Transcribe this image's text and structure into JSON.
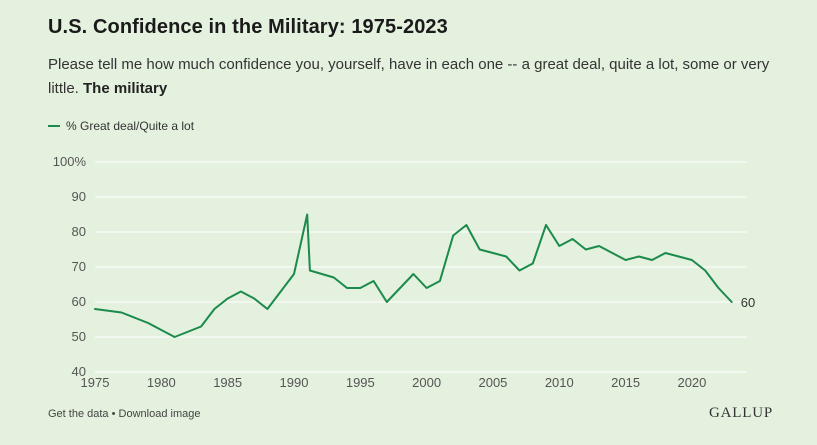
{
  "header": {
    "title": "U.S. Confidence in the Military: 1975-2023",
    "subtitle_question": "Please tell me how much confidence you, yourself, have in each one -- a great deal, quite a lot, some or very little.",
    "subtitle_item": "The military"
  },
  "legend": {
    "label": "% Great deal/Quite a lot"
  },
  "footer": {
    "get_data": "Get the data",
    "separator": "•",
    "download": "Download image",
    "brand": "GALLUP"
  },
  "colors": {
    "background": "#e4f1df",
    "series": "#1b8a4a",
    "grid": "#ffffff"
  },
  "chart_data": {
    "type": "line",
    "title": "U.S. Confidence in the Military: 1975-2023",
    "xlabel": "",
    "ylabel": "",
    "xlim": [
      1975,
      2024
    ],
    "ylim": [
      40,
      100
    ],
    "grid": true,
    "legend_position": "top-left",
    "x_ticks": [
      1975,
      1980,
      1985,
      1990,
      1995,
      2000,
      2005,
      2010,
      2015,
      2020
    ],
    "y_ticks": [
      {
        "value": 40,
        "label": "40"
      },
      {
        "value": 50,
        "label": "50"
      },
      {
        "value": 60,
        "label": "60"
      },
      {
        "value": 70,
        "label": "70"
      },
      {
        "value": 80,
        "label": "80"
      },
      {
        "value": 90,
        "label": "90"
      },
      {
        "value": 100,
        "label": "100%"
      }
    ],
    "series": [
      {
        "name": "% Great deal/Quite a lot",
        "end_label": "60",
        "x": [
          1975,
          1977,
          1979,
          1981,
          1983,
          1984,
          1985,
          1986,
          1987,
          1988,
          1989,
          1990,
          1991,
          1991.2,
          1993,
          1994,
          1995,
          1996,
          1997,
          1998,
          1999,
          2000,
          2001,
          2002,
          2003,
          2004,
          2005,
          2006,
          2007,
          2008,
          2009,
          2010,
          2011,
          2012,
          2013,
          2014,
          2015,
          2016,
          2017,
          2018,
          2019,
          2020,
          2021,
          2022,
          2023
        ],
        "y": [
          58,
          57,
          54,
          50,
          53,
          58,
          61,
          63,
          61,
          58,
          63,
          68,
          85,
          69,
          67,
          64,
          64,
          66,
          60,
          64,
          68,
          64,
          66,
          79,
          82,
          75,
          74,
          73,
          69,
          71,
          82,
          76,
          78,
          75,
          76,
          74,
          72,
          73,
          72,
          74,
          73,
          72,
          69,
          64,
          60
        ]
      }
    ]
  }
}
